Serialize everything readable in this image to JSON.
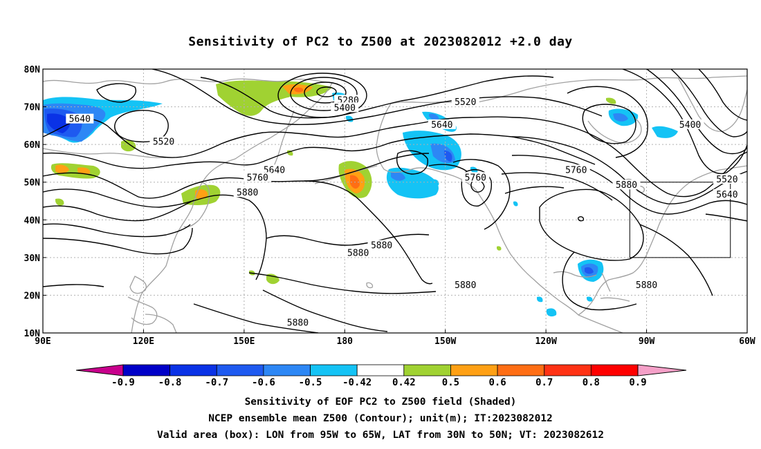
{
  "title": "Sensitivity of PC2 to Z500 at 2023082012 +2.0 day",
  "captions": {
    "line1": "Sensitivity of EOF PC2 to Z500 field (Shaded)",
    "line2": "NCEP ensemble mean Z500 (Contour); unit(m); IT:2023082012",
    "line3": "Valid area (box): LON from 95W to 65W, LAT from 30N to 50N; VT: 2023082612"
  },
  "map": {
    "lon_range": [
      90,
      300
    ],
    "lat_range": [
      10,
      80
    ],
    "lat_ticks": [
      {
        "lat": 80,
        "label": "80N"
      },
      {
        "lat": 70,
        "label": "70N"
      },
      {
        "lat": 60,
        "label": "60N"
      },
      {
        "lat": 50,
        "label": "50N"
      },
      {
        "lat": 40,
        "label": "40N"
      },
      {
        "lat": 30,
        "label": "30N"
      },
      {
        "lat": 20,
        "label": "20N"
      },
      {
        "lat": 10,
        "label": "10N"
      }
    ],
    "lon_ticks": [
      {
        "lon": 90,
        "label": "90E"
      },
      {
        "lon": 120,
        "label": "120E"
      },
      {
        "lon": 150,
        "label": "150E"
      },
      {
        "lon": 180,
        "label": "180"
      },
      {
        "lon": 210,
        "label": "150W"
      },
      {
        "lon": 240,
        "label": "120W"
      },
      {
        "lon": 270,
        "label": "90W"
      },
      {
        "lon": 300,
        "label": "60W"
      }
    ],
    "valid_box": {
      "lon_min": 265,
      "lon_max": 295,
      "lat_min": 30,
      "lat_max": 50
    },
    "contour_labels": [
      {
        "text": "5640",
        "lon": 101,
        "lat": 66.5
      },
      {
        "text": "5520",
        "lon": 126,
        "lat": 60.5
      },
      {
        "text": "5280",
        "lon": 181,
        "lat": 71.5
      },
      {
        "text": "5400",
        "lon": 180,
        "lat": 69.5
      },
      {
        "text": "5520",
        "lon": 216,
        "lat": 71
      },
      {
        "text": "5640",
        "lon": 209,
        "lat": 65
      },
      {
        "text": "5640",
        "lon": 159,
        "lat": 53
      },
      {
        "text": "5760",
        "lon": 154,
        "lat": 51
      },
      {
        "text": "5880",
        "lon": 151,
        "lat": 47
      },
      {
        "text": "5760",
        "lon": 219,
        "lat": 51
      },
      {
        "text": "5760",
        "lon": 249,
        "lat": 53
      },
      {
        "text": "5880",
        "lon": 264,
        "lat": 49
      },
      {
        "text": "5400",
        "lon": 283,
        "lat": 65
      },
      {
        "text": "5520",
        "lon": 294,
        "lat": 50.5
      },
      {
        "text": "5640",
        "lon": 294,
        "lat": 46.5
      },
      {
        "text": "5880",
        "lon": 191,
        "lat": 33
      },
      {
        "text": "5880",
        "lon": 184,
        "lat": 31
      },
      {
        "text": "5880",
        "lon": 216,
        "lat": 22.5
      },
      {
        "text": "5880",
        "lon": 270,
        "lat": 22.5
      },
      {
        "text": "5880",
        "lon": 166,
        "lat": 12.5
      }
    ]
  },
  "colorbar": {
    "labels": [
      "-0.9",
      "-0.8",
      "-0.7",
      "-0.6",
      "-0.5",
      "-0.42",
      "0.42",
      "0.5",
      "0.6",
      "0.7",
      "0.8",
      "0.9"
    ],
    "colors": {
      "below_min": "#c8008c",
      "b1": "#0000c8",
      "b2": "#0a32e6",
      "b3": "#1e5af0",
      "b4": "#2d87f5",
      "b5": "#14c3f5",
      "neutral": "#ffffff",
      "p1": "#a0d232",
      "p2": "#ffa014",
      "p3": "#ff6e14",
      "p4": "#ff3214",
      "p5": "#ff0000",
      "above_max": "#f5a0c8"
    }
  },
  "colors": {
    "coastline": "#a0a0a0",
    "contour": "#000000",
    "grid": "#b0b0b0"
  }
}
